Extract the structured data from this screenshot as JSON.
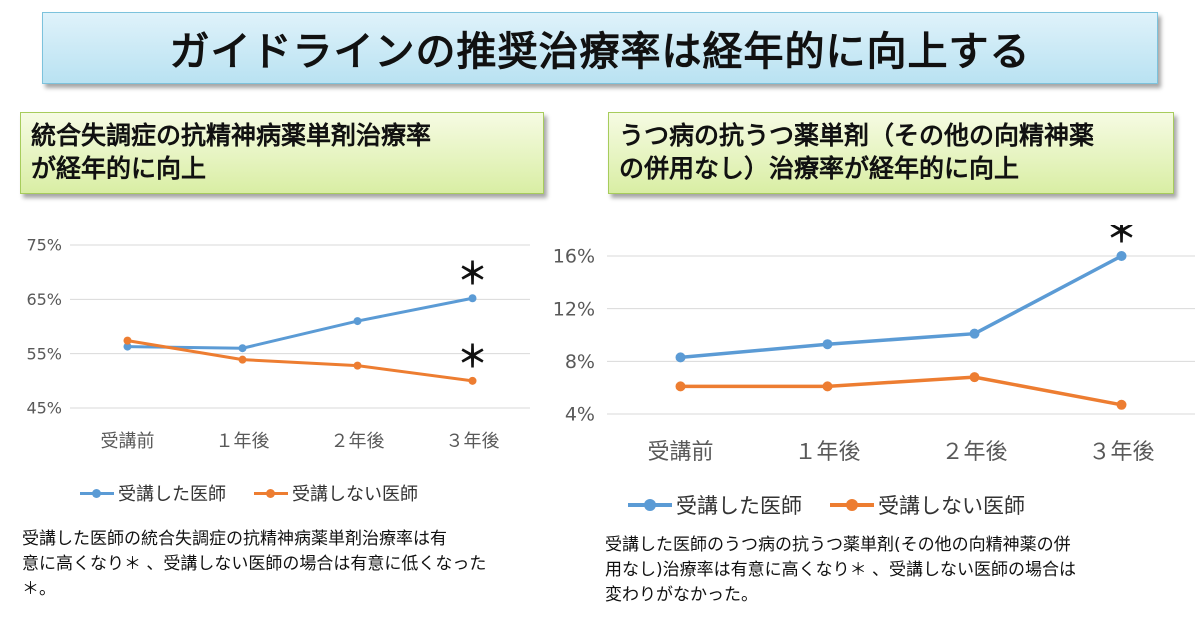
{
  "title": "ガイドラインの推奨治療率は経年的に向上する",
  "left_panel": {
    "subtitle_lines": [
      "統合失調症の抗精神病薬単剤治療率",
      "が経年的に向上"
    ],
    "note_lines": [
      "受講した医師の統合失調症の抗精神病薬単剤治療率は有",
      "意に高くなり＊ 、受講しない医師の場合は有意に低くなった",
      "＊。"
    ]
  },
  "right_panel": {
    "subtitle_lines": [
      "うつ病の抗うつ薬単剤（その他の向精神薬",
      "の併用なし）治療率が経年的に向上"
    ],
    "note_lines": [
      "受講した医師のうつ病の抗うつ薬単剤(その他の向精神薬の併",
      "用なし)治療率は有意に高くなり＊ 、受講しない医師の場合は",
      "変わりがなかった。"
    ]
  },
  "colors": {
    "attended": "#5b9bd5",
    "not_attended": "#ed7d31",
    "grid": "#d9d9d9",
    "axis_text": "#595959"
  },
  "chart_data": [
    {
      "type": "line",
      "categories": [
        "受講前",
        "１年後",
        "２年後",
        "３年後"
      ],
      "series": [
        {
          "name": "受講した医師",
          "values": [
            56.3,
            56.0,
            61.0,
            65.2
          ]
        },
        {
          "name": "受講しない医師",
          "values": [
            57.4,
            53.9,
            52.8,
            50.0
          ]
        }
      ],
      "ylim": [
        45,
        75
      ],
      "yticks": [
        45,
        55,
        65,
        75
      ],
      "ytick_labels": [
        "45%",
        "55%",
        "65%",
        "75%"
      ],
      "grid": true,
      "legend": "bottom",
      "annotations": [
        {
          "text": "＊",
          "series": 0,
          "index": 3
        },
        {
          "text": "＊",
          "series": 1,
          "index": 3
        }
      ]
    },
    {
      "type": "line",
      "categories": [
        "受講前",
        "１年後",
        "２年後",
        "３年後"
      ],
      "series": [
        {
          "name": "受講した医師",
          "values": [
            8.3,
            9.3,
            10.1,
            16.0
          ]
        },
        {
          "name": "受講しない医師",
          "values": [
            6.1,
            6.1,
            6.8,
            4.7
          ]
        }
      ],
      "ylim": [
        4,
        16
      ],
      "yticks": [
        4,
        8,
        12,
        16
      ],
      "ytick_labels": [
        "4%",
        "8%",
        "12%",
        "16%"
      ],
      "grid": true,
      "legend": "bottom",
      "annotations": [
        {
          "text": "＊",
          "series": 0,
          "index": 3
        }
      ]
    }
  ]
}
